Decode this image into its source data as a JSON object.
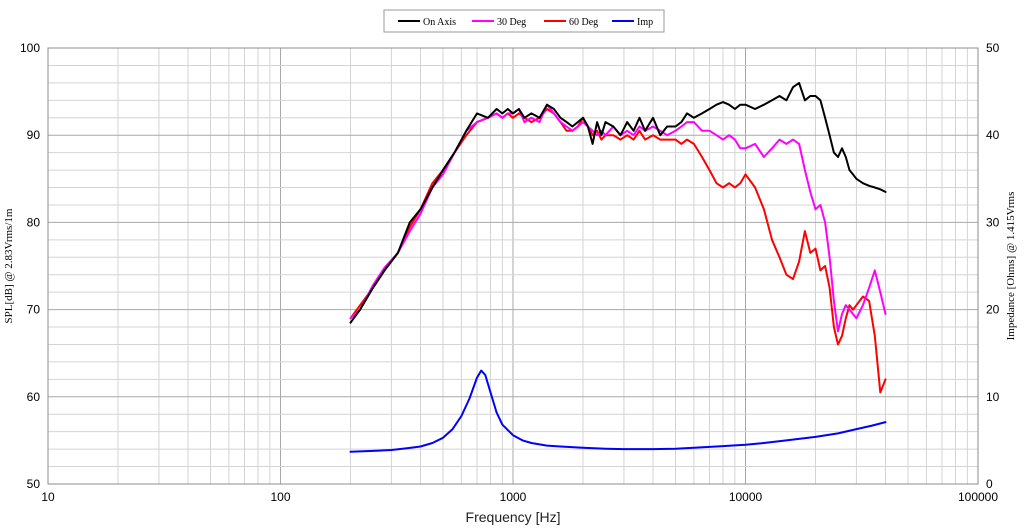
{
  "chart_data": {
    "type": "line",
    "xlabel": "Frequency [Hz]",
    "ylabel": "SPL[dB] @ 2.83Vrms/1m",
    "y2label": "Impedance [Ohms] @ 1.415Vrms",
    "xscale": "log",
    "xlim": [
      10,
      100000
    ],
    "ylim": [
      50,
      100
    ],
    "y2lim": [
      0,
      50
    ],
    "x_ticks": [
      "10",
      "100",
      "1000",
      "10000",
      "100000"
    ],
    "y_ticks": [
      "50",
      "60",
      "70",
      "80",
      "90",
      "100"
    ],
    "y2_ticks": [
      "0",
      "10",
      "20",
      "30",
      "40",
      "50"
    ],
    "grid": true,
    "legend_position": "top-center",
    "colors": {
      "on_axis": "#000000",
      "deg30": "#ff00ff",
      "deg60": "#ff0000",
      "imp": "#0000ff",
      "grid": "#d4d4d4"
    },
    "series": [
      {
        "name": "On Axis",
        "axis": "left",
        "x": [
          200,
          220,
          250,
          280,
          320,
          360,
          400,
          450,
          500,
          560,
          630,
          700,
          780,
          850,
          900,
          950,
          1000,
          1060,
          1120,
          1200,
          1300,
          1400,
          1500,
          1600,
          1700,
          1800,
          1900,
          2000,
          2100,
          2200,
          2300,
          2400,
          2500,
          2700,
          2900,
          3100,
          3300,
          3500,
          3700,
          4000,
          4300,
          4600,
          5000,
          5300,
          5600,
          6000,
          6500,
          7000,
          7500,
          8000,
          8500,
          9000,
          9500,
          10000,
          11000,
          12000,
          13000,
          14000,
          15000,
          16000,
          17000,
          18000,
          19000,
          20000,
          21000,
          22000,
          23000,
          24000,
          25000,
          26000,
          27000,
          28000,
          29000,
          30000,
          32000,
          34000,
          36000,
          38000,
          40000
        ],
        "values": [
          68.5,
          70.0,
          72.5,
          74.5,
          76.5,
          80.0,
          81.5,
          84.0,
          86.0,
          88.0,
          90.5,
          92.5,
          92.0,
          93.0,
          92.5,
          93.0,
          92.5,
          93.0,
          92.0,
          92.5,
          92.0,
          93.5,
          93.0,
          92.0,
          91.5,
          91.0,
          91.5,
          92.0,
          91.0,
          89.0,
          91.5,
          90.0,
          91.5,
          91.0,
          90.0,
          91.5,
          90.5,
          92.0,
          90.5,
          92.0,
          90.0,
          91.0,
          91.0,
          91.5,
          92.5,
          92.0,
          92.5,
          93.0,
          93.5,
          93.8,
          93.5,
          93.0,
          93.5,
          93.5,
          93.0,
          93.5,
          94.0,
          94.5,
          94.0,
          95.5,
          96.0,
          94.0,
          94.5,
          94.5,
          94.0,
          92.0,
          90.0,
          88.0,
          87.5,
          88.5,
          87.5,
          86.0,
          85.5,
          85.0,
          84.5,
          84.2,
          84.0,
          83.8,
          83.5
        ]
      },
      {
        "name": "30 Deg",
        "axis": "left",
        "x": [
          200,
          220,
          250,
          280,
          320,
          360,
          400,
          450,
          500,
          560,
          630,
          700,
          780,
          850,
          900,
          950,
          1000,
          1060,
          1120,
          1200,
          1300,
          1400,
          1500,
          1600,
          1700,
          1800,
          1900,
          2000,
          2100,
          2200,
          2300,
          2400,
          2500,
          2700,
          2900,
          3100,
          3300,
          3500,
          3700,
          4000,
          4300,
          4600,
          5000,
          5300,
          5600,
          6000,
          6500,
          7000,
          7500,
          8000,
          8500,
          9000,
          9500,
          10000,
          11000,
          12000,
          13000,
          14000,
          15000,
          16000,
          17000,
          18000,
          19000,
          20000,
          21000,
          22000,
          23000,
          24000,
          25000,
          26000,
          27000,
          28000,
          29000,
          30000,
          32000,
          34000,
          36000,
          38000,
          40000
        ],
        "values": [
          69.0,
          70.0,
          72.8,
          74.8,
          76.5,
          79.0,
          81.0,
          84.0,
          85.5,
          88.0,
          90.5,
          91.5,
          92.0,
          92.5,
          92.0,
          92.5,
          92.5,
          93.0,
          91.5,
          92.0,
          91.5,
          93.5,
          92.5,
          91.5,
          91.0,
          90.5,
          91.0,
          91.5,
          91.0,
          90.5,
          90.0,
          90.5,
          90.0,
          91.0,
          90.0,
          90.5,
          90.0,
          91.0,
          90.5,
          91.0,
          90.5,
          90.0,
          90.5,
          91.0,
          91.5,
          91.5,
          90.5,
          90.5,
          90.0,
          89.5,
          90.0,
          89.5,
          88.5,
          88.5,
          89.0,
          87.5,
          88.5,
          89.5,
          89.0,
          89.5,
          89.0,
          86.0,
          83.5,
          81.5,
          82.0,
          80.0,
          76.0,
          71.0,
          67.5,
          69.5,
          70.5,
          70.0,
          69.5,
          69.0,
          70.5,
          72.5,
          74.5,
          72.0,
          69.5
        ]
      },
      {
        "name": "60 Deg",
        "axis": "left",
        "x": [
          200,
          220,
          250,
          280,
          320,
          360,
          400,
          450,
          500,
          560,
          630,
          700,
          780,
          850,
          900,
          950,
          1000,
          1060,
          1120,
          1200,
          1300,
          1400,
          1500,
          1600,
          1700,
          1800,
          1900,
          2000,
          2100,
          2200,
          2300,
          2400,
          2500,
          2700,
          2900,
          3100,
          3300,
          3500,
          3700,
          4000,
          4300,
          4600,
          5000,
          5300,
          5600,
          6000,
          6500,
          7000,
          7500,
          8000,
          8500,
          9000,
          9500,
          10000,
          11000,
          12000,
          13000,
          14000,
          15000,
          16000,
          17000,
          18000,
          19000,
          20000,
          21000,
          22000,
          23000,
          24000,
          25000,
          26000,
          27000,
          28000,
          29000,
          30000,
          32000,
          34000,
          36000,
          38000,
          40000
        ],
        "values": [
          69.0,
          70.5,
          72.5,
          74.5,
          76.5,
          79.5,
          81.5,
          84.5,
          86.0,
          88.0,
          90.0,
          91.5,
          92.0,
          92.5,
          92.0,
          92.5,
          92.0,
          92.5,
          92.0,
          91.5,
          92.0,
          93.0,
          92.5,
          91.5,
          90.5,
          90.5,
          91.0,
          92.0,
          91.0,
          90.0,
          90.5,
          89.5,
          90.0,
          90.0,
          89.5,
          90.0,
          89.5,
          90.5,
          89.5,
          90.0,
          89.5,
          89.5,
          89.5,
          89.0,
          89.5,
          89.0,
          87.5,
          86.0,
          84.5,
          84.0,
          84.5,
          84.0,
          84.5,
          85.5,
          84.0,
          81.5,
          78.0,
          76.0,
          74.0,
          73.5,
          75.5,
          79.0,
          76.5,
          77.0,
          74.5,
          75.0,
          72.5,
          68.0,
          66.0,
          67.0,
          69.0,
          70.5,
          70.0,
          70.5,
          71.5,
          71.0,
          67.0,
          60.5,
          62.0
        ]
      },
      {
        "name": "Imp",
        "axis": "right",
        "x": [
          200,
          250,
          300,
          350,
          400,
          450,
          500,
          550,
          600,
          650,
          700,
          730,
          760,
          800,
          850,
          900,
          1000,
          1100,
          1200,
          1400,
          1600,
          2000,
          2500,
          3000,
          4000,
          5000,
          6000,
          7000,
          8000,
          10000,
          12000,
          15000,
          20000,
          25000,
          30000,
          35000,
          40000
        ],
        "values": [
          3.7,
          3.8,
          3.9,
          4.1,
          4.3,
          4.7,
          5.3,
          6.3,
          7.8,
          9.8,
          12.2,
          13.0,
          12.5,
          10.5,
          8.2,
          6.8,
          5.6,
          5.0,
          4.7,
          4.4,
          4.3,
          4.15,
          4.05,
          4.0,
          4.0,
          4.05,
          4.15,
          4.25,
          4.35,
          4.5,
          4.7,
          5.0,
          5.4,
          5.8,
          6.3,
          6.7,
          7.1
        ]
      }
    ]
  }
}
